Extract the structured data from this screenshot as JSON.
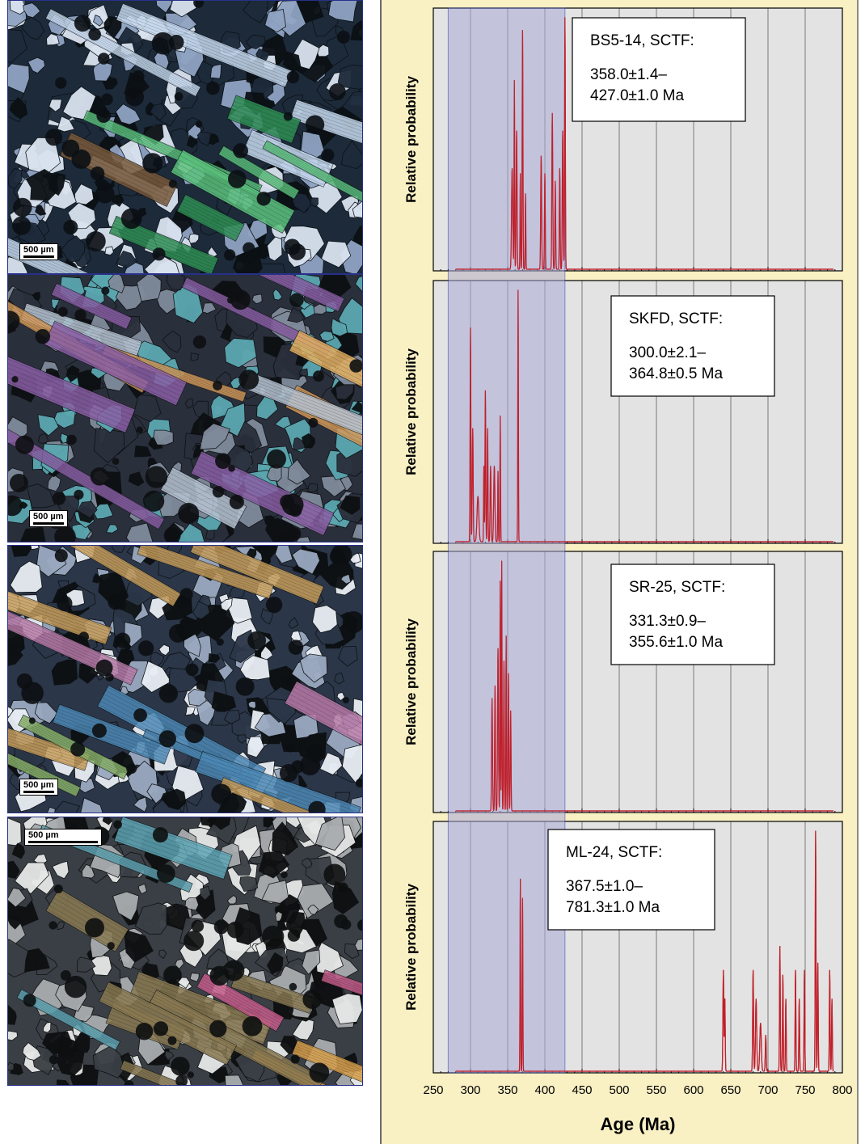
{
  "micrographs": [
    {
      "scale_label": "500 µm",
      "palette": [
        "#0b1014",
        "#1d2a3a",
        "#8fa3c2",
        "#d9e2ef",
        "#5cc27d",
        "#2f8f55",
        "#7a5a3a",
        "#c6d9ee"
      ]
    },
    {
      "scale_label": "500 µm",
      "palette": [
        "#0d1012",
        "#2a2f3c",
        "#7f8a9a",
        "#5ba7b0",
        "#e3b061",
        "#d49a5a",
        "#8a5fa5",
        "#b7c3d2"
      ]
    },
    {
      "scale_label": "500 µm",
      "palette": [
        "#0c1012",
        "#2b3648",
        "#9aa9c0",
        "#e9eef4",
        "#b87aa8",
        "#8bb46b",
        "#4c88b5",
        "#c79d5a"
      ]
    },
    {
      "scale_label": "500 µm",
      "palette": [
        "#0d0f10",
        "#3a3f45",
        "#a8acae",
        "#e6e8e8",
        "#c85e8d",
        "#d9a04a",
        "#5fa6b6",
        "#8a7a52"
      ]
    }
  ],
  "chart_data": {
    "type": "line",
    "xlabel": "Age (Ma)",
    "ylabel": "Relative probability",
    "xlim": [
      250,
      800
    ],
    "xticks": [
      250,
      300,
      350,
      400,
      450,
      500,
      550,
      600,
      650,
      700,
      750,
      800
    ],
    "highlight_band": [
      270,
      427
    ],
    "grid": true,
    "line_color": "#c0202a",
    "band_color": "#a9a9d8",
    "panels": [
      {
        "label": "BS5-14, SCTF:",
        "range_line1": "358.0±1.4–",
        "range_line2": "427.0±1.0 Ma",
        "peaks": [
          [
            356,
            0.08,
            0.4
          ],
          [
            359,
            0.04,
            0.75
          ],
          [
            362,
            0.06,
            0.55
          ],
          [
            367,
            0.04,
            0.38
          ],
          [
            370,
            0.05,
            0.95
          ],
          [
            374,
            0.04,
            0.3
          ],
          [
            395,
            0.06,
            0.45
          ],
          [
            400,
            0.05,
            0.38
          ],
          [
            410,
            0.06,
            0.62
          ],
          [
            414,
            0.05,
            0.35
          ],
          [
            420,
            0.05,
            0.4
          ],
          [
            424,
            0.06,
            0.55
          ],
          [
            427,
            0.05,
            1.0
          ]
        ]
      },
      {
        "label": "SKFD, SCTF:",
        "range_line1": "300.0±2.1–",
        "range_line2": "364.8±0.5 Ma",
        "peaks": [
          [
            300,
            0.05,
            0.85
          ],
          [
            303,
            0.06,
            0.45
          ],
          [
            310,
            0.12,
            0.18
          ],
          [
            318,
            0.04,
            0.3
          ],
          [
            320,
            0.05,
            0.6
          ],
          [
            323,
            0.05,
            0.45
          ],
          [
            327,
            0.06,
            0.3
          ],
          [
            332,
            0.08,
            0.3
          ],
          [
            337,
            0.04,
            0.28
          ],
          [
            340,
            0.04,
            0.5
          ],
          [
            364,
            0.04,
            1.0
          ]
        ]
      },
      {
        "label": "SR-25, SCTF:",
        "range_line1": "331.3±0.9–",
        "range_line2": "355.6±1.0 Ma",
        "peaks": [
          [
            329,
            0.06,
            0.45
          ],
          [
            333,
            0.05,
            0.5
          ],
          [
            337,
            0.06,
            0.65
          ],
          [
            340,
            0.04,
            0.92
          ],
          [
            342,
            0.04,
            1.0
          ],
          [
            345,
            0.05,
            0.6
          ],
          [
            348,
            0.04,
            0.7
          ],
          [
            351,
            0.05,
            0.55
          ],
          [
            354,
            0.05,
            0.4
          ]
        ]
      },
      {
        "label": "ML-24, SCTF:",
        "range_line1": "367.5±1.0–",
        "range_line2": "781.3±1.0 Ma",
        "peaks": [
          [
            367,
            0.04,
            0.8
          ],
          [
            370,
            0.04,
            0.72
          ],
          [
            640,
            0.06,
            0.42
          ],
          [
            642,
            0.05,
            0.3
          ],
          [
            680,
            0.06,
            0.42
          ],
          [
            684,
            0.08,
            0.3
          ],
          [
            690,
            0.1,
            0.2
          ],
          [
            697,
            0.06,
            0.15
          ],
          [
            716,
            0.05,
            0.52
          ],
          [
            720,
            0.05,
            0.4
          ],
          [
            724,
            0.05,
            0.3
          ],
          [
            737,
            0.05,
            0.42
          ],
          [
            742,
            0.05,
            0.3
          ],
          [
            749,
            0.05,
            0.42
          ],
          [
            764,
            0.05,
            1.0
          ],
          [
            767,
            0.05,
            0.45
          ],
          [
            783,
            0.05,
            0.42
          ],
          [
            786,
            0.05,
            0.3
          ]
        ]
      }
    ]
  }
}
